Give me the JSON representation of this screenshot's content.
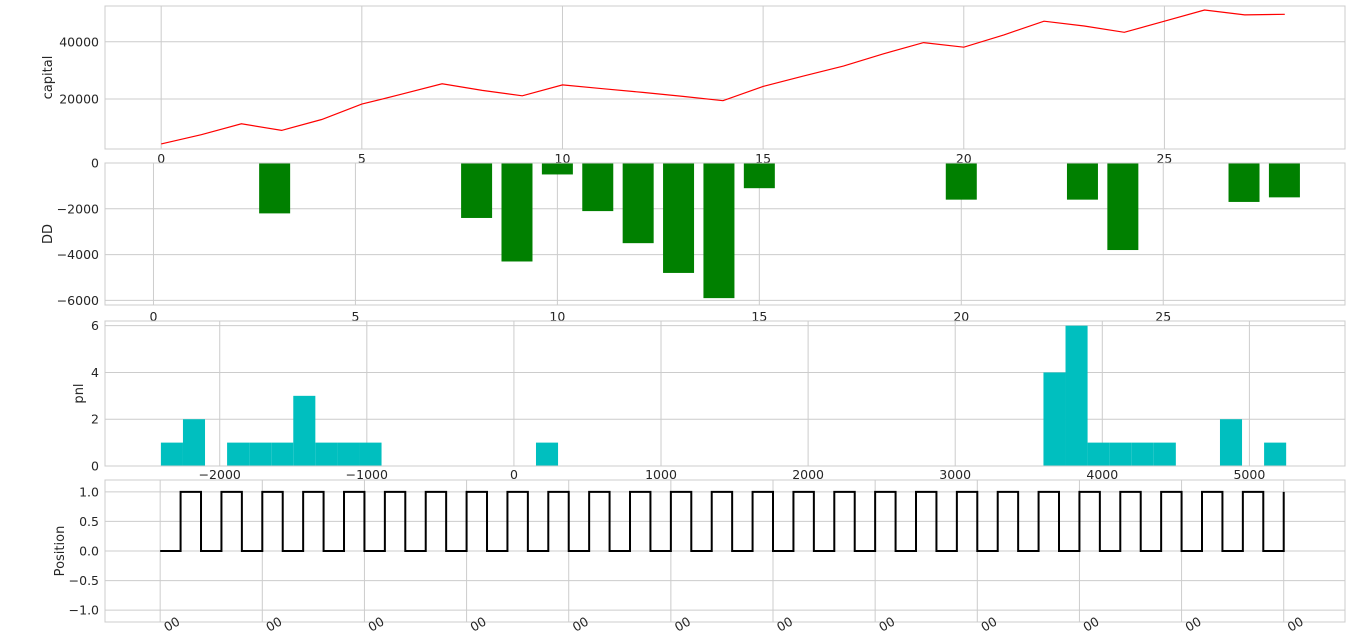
{
  "chart_data": [
    {
      "type": "line",
      "ylabel": "capital",
      "color": "#ff0000",
      "x": [
        0,
        1,
        2,
        3,
        4,
        5,
        6,
        7,
        8,
        9,
        10,
        11,
        12,
        13,
        14,
        15,
        16,
        17,
        18,
        19,
        20,
        21,
        22,
        23,
        24,
        25,
        26,
        27,
        28
      ],
      "values": [
        4300,
        7500,
        11300,
        9000,
        12800,
        18200,
        21700,
        25300,
        23000,
        21100,
        24900,
        23600,
        22300,
        20900,
        19400,
        24400,
        28000,
        31500,
        35800,
        39700,
        38100,
        42400,
        47200,
        45500,
        43300,
        47200,
        51100,
        49400,
        49600
      ],
      "xlim": [
        -1.4,
        29.5
      ],
      "ylim": [
        2500,
        52500
      ],
      "xticks": [
        "0",
        "5",
        "10",
        "15",
        "20",
        "25"
      ],
      "xtick_values": [
        0,
        5,
        10,
        15,
        20,
        25
      ],
      "yticks": [
        "20000",
        "40000"
      ],
      "ytick_values": [
        20000,
        40000
      ],
      "grid": true
    },
    {
      "type": "bar",
      "ylabel": "DD",
      "color": "#008000",
      "x": [
        3,
        8,
        9,
        10,
        11,
        12,
        13,
        14,
        15,
        20,
        23,
        24,
        27,
        28
      ],
      "values": [
        -2200,
        -2400,
        -4300,
        -500,
        -2100,
        -3500,
        -4800,
        -5900,
        -1100,
        -1600,
        -1600,
        -3800,
        -1700,
        -1500
      ],
      "xlim": [
        -1.2,
        29.5
      ],
      "ylim": [
        -6200,
        0
      ],
      "xticks": [
        "0",
        "5",
        "10",
        "15",
        "20",
        "25"
      ],
      "xtick_values": [
        0,
        5,
        10,
        15,
        20,
        25
      ],
      "yticks": [
        "0",
        "−2000",
        "−4000",
        "−6000"
      ],
      "ytick_values": [
        0,
        -2000,
        -4000,
        -6000
      ],
      "grid": true
    },
    {
      "type": "bar",
      "ylabel": "pnl",
      "color": "#00bfbf",
      "histogram": true,
      "bin_edges": [
        -2400,
        -2250,
        -2100,
        -1950,
        -1800,
        -1650,
        -1500,
        -1350,
        -1200,
        -1050,
        -900,
        -750,
        -600,
        -450,
        -300,
        -150,
        0,
        150,
        300,
        450,
        600,
        750,
        900,
        1050,
        1200,
        1350,
        1500,
        1650,
        1800,
        1950,
        2100,
        2250,
        2400,
        2550,
        2700,
        2850,
        3000,
        3150,
        3300,
        3450,
        3600,
        3750,
        3900,
        4050,
        4200,
        4350,
        4500,
        4650,
        4800,
        4950,
        5100,
        5250
      ],
      "values": [
        1,
        2,
        0,
        1,
        1,
        1,
        3,
        1,
        1,
        1,
        0,
        0,
        0,
        0,
        0,
        0,
        0,
        1,
        0,
        0,
        0,
        0,
        0,
        0,
        0,
        0,
        0,
        0,
        0,
        0,
        0,
        0,
        0,
        0,
        0,
        0,
        0,
        0,
        0,
        0,
        4,
        6,
        1,
        1,
        1,
        1,
        0,
        0,
        2,
        0,
        1
      ],
      "xlim": [
        -2780,
        5650
      ],
      "ylim": [
        0,
        6.2
      ],
      "xticks": [
        "−2000",
        "−1000",
        "0",
        "1000",
        "2000",
        "3000",
        "4000",
        "5000"
      ],
      "xtick_values": [
        -2000,
        -1000,
        0,
        1000,
        2000,
        3000,
        4000,
        5000
      ],
      "yticks": [
        "0",
        "2",
        "4",
        "6"
      ],
      "ytick_values": [
        0,
        2,
        4,
        6
      ],
      "grid": true
    },
    {
      "type": "line",
      "step": true,
      "ylabel": "Position",
      "color": "#000000",
      "x": [
        0,
        1,
        2,
        3,
        4,
        5,
        6,
        7,
        8,
        9,
        10,
        11,
        12,
        13,
        14,
        15,
        16,
        17,
        18,
        19,
        20,
        21,
        22,
        23,
        24,
        25,
        26,
        27,
        28,
        29,
        30,
        31,
        32,
        33,
        34,
        35,
        36,
        37,
        38,
        39,
        40,
        41,
        42,
        43,
        44,
        45,
        46,
        47,
        48,
        49,
        50,
        51,
        52,
        53,
        54,
        55
      ],
      "values": [
        0,
        1,
        0,
        1,
        0,
        1,
        0,
        1,
        0,
        1,
        0,
        1,
        0,
        1,
        0,
        1,
        0,
        1,
        0,
        1,
        0,
        1,
        0,
        1,
        0,
        1,
        0,
        1,
        0,
        1,
        0,
        1,
        0,
        1,
        0,
        1,
        0,
        1,
        0,
        1,
        0,
        1,
        0,
        1,
        0,
        1,
        0,
        1,
        0,
        1,
        0,
        1,
        0,
        1,
        0,
        1
      ],
      "xlim": [
        -2.7,
        58
      ],
      "ylim": [
        -1.2,
        1.2
      ],
      "xticks": [
        "00",
        "00",
        "00",
        "00",
        "00",
        "00",
        "00",
        "00",
        "00",
        "00",
        "00",
        "00"
      ],
      "xtick_values": [
        0,
        5,
        10,
        15,
        20,
        25,
        30,
        35,
        40,
        45,
        50,
        55
      ],
      "yticks": [
        "1.0",
        "0.5",
        "0.0",
        "−0.5",
        "−1.0"
      ],
      "ytick_values": [
        1.0,
        0.5,
        0.0,
        -0.5,
        -1.0
      ],
      "grid": true
    }
  ]
}
